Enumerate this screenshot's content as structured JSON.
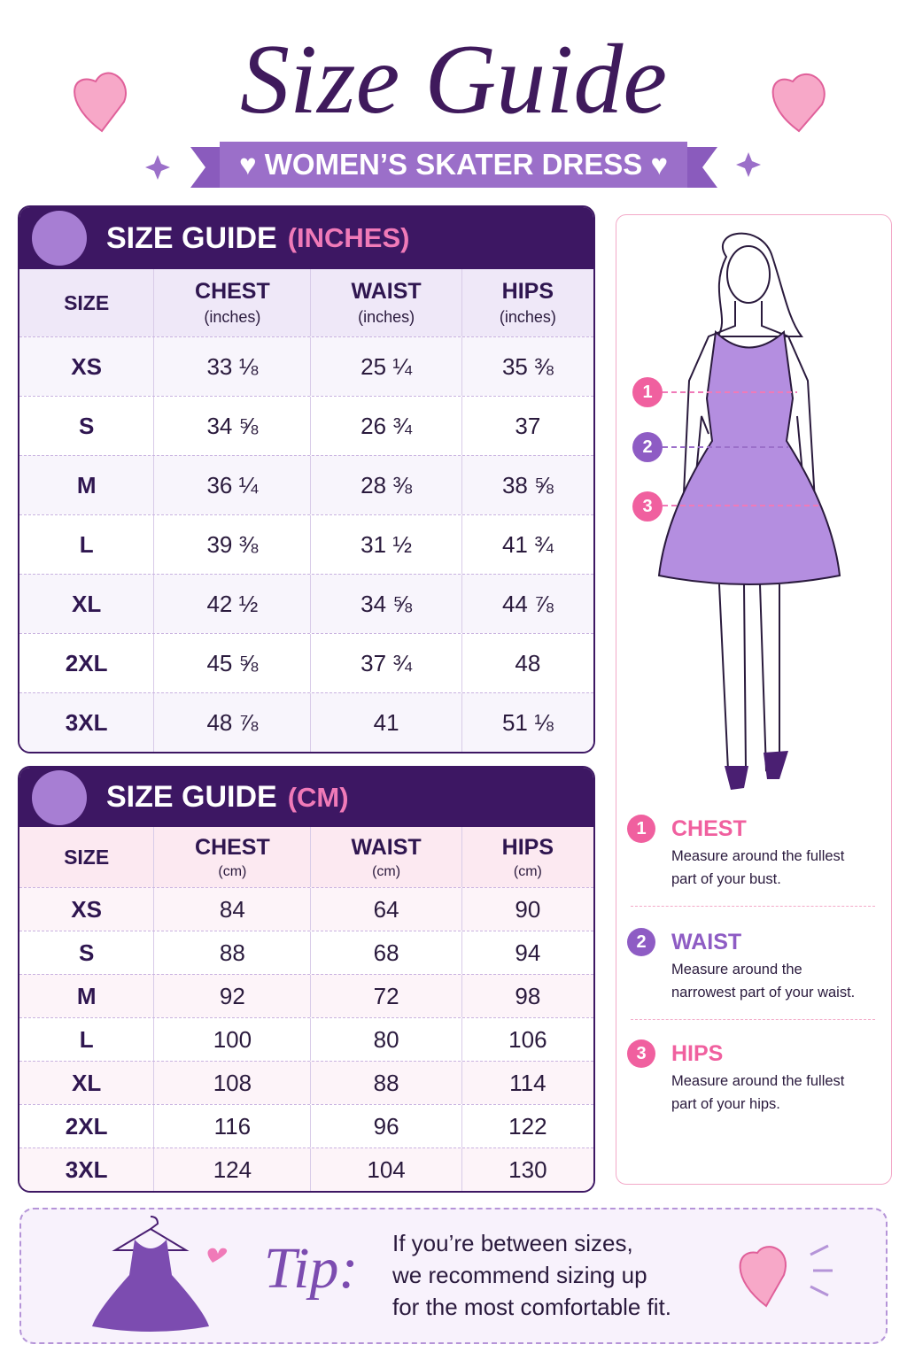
{
  "title": "Size Guide",
  "subtitle": "WOMEN’S SKATER DRESS",
  "tables": [
    {
      "heading": "SIZE GUIDE",
      "unit": "(INCHES)",
      "columns": [
        {
          "name": "SIZE"
        },
        {
          "name": "CHEST",
          "unit": "(inches)"
        },
        {
          "name": "WAIST",
          "unit": "(inches)"
        },
        {
          "name": "HIPS",
          "unit": "(inches)"
        }
      ],
      "rows": [
        [
          "XS",
          "33 ⅛",
          "25 ¼",
          "35 ⅜"
        ],
        [
          "S",
          "34 ⅝",
          "26 ¾",
          "37"
        ],
        [
          "M",
          "36 ¼",
          "28 ⅜",
          "38 ⅝"
        ],
        [
          "L",
          "39 ⅜",
          "31 ½",
          "41 ¾"
        ],
        [
          "XL",
          "42 ½",
          "34 ⅝",
          "44 ⅞"
        ],
        [
          "2XL",
          "45 ⅝",
          "37 ¾",
          "48"
        ],
        [
          "3XL",
          "48 ⅞",
          "41",
          "51 ⅛"
        ]
      ]
    },
    {
      "heading": "SIZE GUIDE",
      "unit": "(CM)",
      "columns": [
        {
          "name": "SIZE"
        },
        {
          "name": "CHEST",
          "unit": "(cm)"
        },
        {
          "name": "WAIST",
          "unit": "(cm)"
        },
        {
          "name": "HIPS",
          "unit": "(cm)"
        }
      ],
      "rows": [
        [
          "XS",
          84,
          64,
          90
        ],
        [
          "S",
          88,
          68,
          94
        ],
        [
          "M",
          92,
          72,
          98
        ],
        [
          "L",
          100,
          80,
          106
        ],
        [
          "XL",
          108,
          88,
          114
        ],
        [
          "2XL",
          116,
          96,
          122
        ],
        [
          "3XL",
          124,
          104,
          130
        ]
      ]
    }
  ],
  "measurements": [
    {
      "number": "1",
      "name": "CHEST",
      "description": [
        "Measure around the fullest",
        "part of your bust."
      ]
    },
    {
      "number": "2",
      "name": "WAIST",
      "description": [
        "Measure around the",
        "narrowest part of your waist."
      ]
    },
    {
      "number": "3",
      "name": "HIPS",
      "description": [
        "Measure around the fullest",
        "part of your hips."
      ]
    }
  ],
  "tip": {
    "label": "Tip:",
    "lines": [
      "If you’re between sizes,",
      "we recommend sizing up",
      "for the most comfortable fit."
    ]
  }
}
